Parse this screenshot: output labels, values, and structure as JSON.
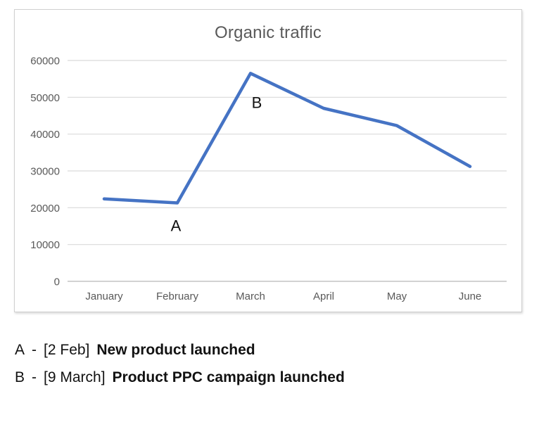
{
  "colors": {
    "line": "#4573C4",
    "gridline": "#d9d9d9",
    "axis_line": "#c3c3c3",
    "tick_text": "#595959",
    "title_text": "#595959",
    "annotation_text": "#111111",
    "chart_border": "#d0d0d0"
  },
  "chart_data": {
    "type": "line",
    "title": "Organic traffic",
    "categories": [
      "January",
      "February",
      "March",
      "April",
      "May",
      "June"
    ],
    "series": [
      {
        "name": "Organic traffic",
        "values": [
          22400,
          21300,
          56500,
          47000,
          42300,
          31200
        ]
      }
    ],
    "xlabel": "",
    "ylabel": "",
    "ylim": [
      0,
      60000
    ],
    "yticks": [
      0,
      10000,
      20000,
      30000,
      40000,
      50000,
      60000
    ],
    "grid": true,
    "legend_position": "none",
    "line_color": "#4573C4",
    "point_annotations": [
      {
        "id": "A",
        "category": "February",
        "value": 21300,
        "position": "below-point"
      },
      {
        "id": "B",
        "category": "March",
        "value": 56500,
        "position": "below-right-of-point"
      }
    ]
  },
  "annotations": [
    {
      "id": "A",
      "separator": "-",
      "date_label": "[2 Feb]",
      "text": "New product launched"
    },
    {
      "id": "B",
      "separator": "-",
      "date_label": "[9 March]",
      "text": "Product PPC campaign launched"
    }
  ]
}
